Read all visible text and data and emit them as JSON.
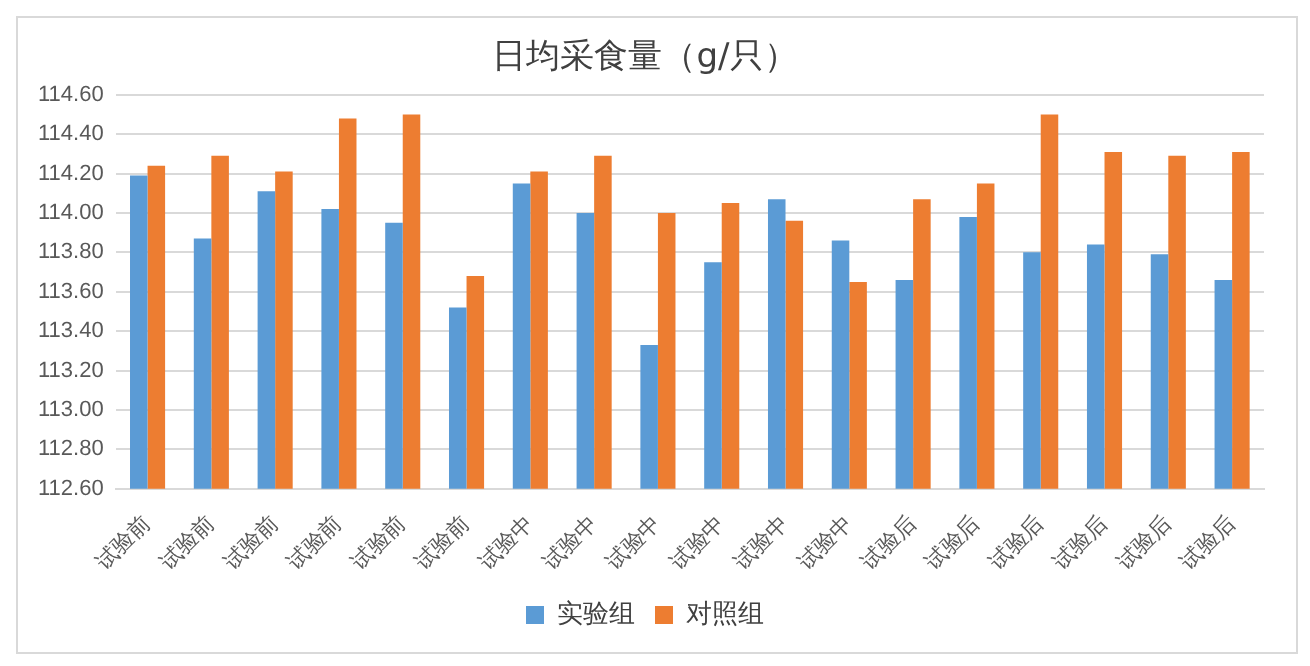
{
  "chart_data": {
    "type": "bar",
    "title": "日均采食量（g/只）",
    "categories": [
      "试验前",
      "试验前",
      "试验前",
      "试验前",
      "试验前",
      "试验前",
      "试验中",
      "试验中",
      "试验中",
      "试验中",
      "试验中",
      "试验中",
      "试验后",
      "试验后",
      "试验后",
      "试验后",
      "试验后",
      "试验后"
    ],
    "series": [
      {
        "name": "实验组",
        "color": "#5b9bd5",
        "values": [
          114.19,
          113.87,
          114.11,
          114.02,
          113.95,
          113.52,
          114.15,
          114.0,
          113.33,
          113.75,
          114.07,
          113.86,
          113.66,
          113.98,
          113.8,
          113.84,
          113.79,
          113.66
        ]
      },
      {
        "name": "对照组",
        "color": "#ed7d31",
        "values": [
          114.24,
          114.29,
          114.21,
          114.48,
          114.5,
          113.68,
          114.21,
          114.29,
          114.0,
          114.05,
          113.96,
          113.65,
          114.07,
          114.15,
          114.5,
          114.31,
          114.29,
          114.31
        ]
      }
    ],
    "ylim": [
      112.6,
      114.6
    ],
    "yticks": [
      {
        "value": 112.6,
        "label": "112.60"
      },
      {
        "value": 112.8,
        "label": "112.80"
      },
      {
        "value": 113.0,
        "label": "113.00"
      },
      {
        "value": 113.2,
        "label": "113.20"
      },
      {
        "value": 113.4,
        "label": "113.40"
      },
      {
        "value": 113.6,
        "label": "113.60"
      },
      {
        "value": 113.8,
        "label": "113.80"
      },
      {
        "value": 114.0,
        "label": "114.00"
      },
      {
        "value": 114.2,
        "label": "114.20"
      },
      {
        "value": 114.4,
        "label": "114.40"
      },
      {
        "value": 114.6,
        "label": "114.60"
      }
    ],
    "grid": "y",
    "legend": "bottom"
  }
}
